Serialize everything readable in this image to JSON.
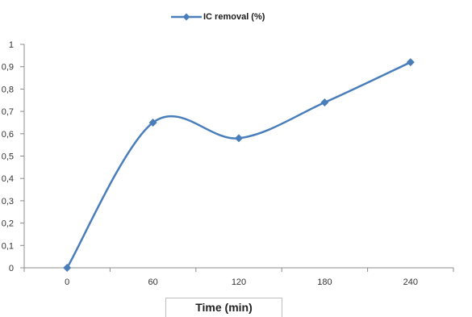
{
  "chart_data": {
    "type": "line",
    "x": [
      0,
      60,
      120,
      180,
      240
    ],
    "categories": [
      "0",
      "60",
      "120",
      "180",
      "240"
    ],
    "series": [
      {
        "name": "IC removal (%)",
        "values": [
          0,
          0.65,
          0.58,
          0.74,
          0.92
        ],
        "color": "#4a7ebb"
      }
    ],
    "xlabel": "Time (min)",
    "ylabel": "",
    "ylim": [
      0,
      1
    ],
    "yticks": [
      "0",
      "0,1",
      "0,2",
      "0,3",
      "0,4",
      "0,5",
      "0,6",
      "0,7",
      "0,8",
      "0,9",
      "1"
    ],
    "smooth": true,
    "marker": "diamond",
    "legend_position": "top"
  }
}
